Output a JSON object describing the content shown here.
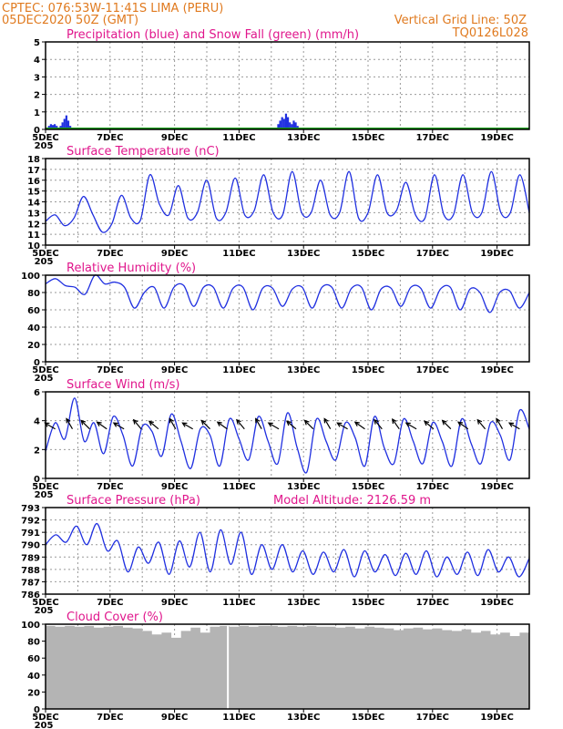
{
  "header": {
    "left_line1": "CPTEC:   076:53W-11:41S   LIMA (PERU)",
    "left_line2": "05DEC2020 50Z (GMT)",
    "right_line1": "Vertical Grid Line: 50Z",
    "right_line2": "TQ0126L028"
  },
  "colors": {
    "header": "#e07a1f",
    "title": "#e0168c",
    "series": "#2030e0",
    "snow": "#18a018",
    "cloud": "#b4b4b4"
  },
  "chart_data": [
    {
      "id": "precip",
      "type": "bar",
      "title": "Precipitation (blue) and Snow Fall (green) (mm/h)",
      "ylim": [
        0,
        5
      ],
      "yticks": [
        "0",
        "1",
        "2",
        "3",
        "4",
        "5"
      ],
      "xticks": [
        "5DEC",
        "7DEC",
        "9DEC",
        "11DEC",
        "13DEC",
        "15DEC",
        "17DEC",
        "19DEC"
      ],
      "x_start_label": "205",
      "grid": true,
      "series": [
        {
          "values": [
            0.2,
            0.3,
            0.25,
            0.3,
            0.2,
            0.1,
            0.2,
            0.4,
            0.6,
            0.8,
            0.5,
            0.2,
            0.1,
            0.1,
            0.05
          ]
        },
        {
          "values": [
            0.1,
            0.3,
            0.5,
            0.7,
            0.6,
            0.9,
            0.7,
            0.4,
            0.3,
            0.5,
            0.4,
            0.2,
            0.1
          ]
        },
        {
          "values": [
            0.02
          ]
        }
      ]
    },
    {
      "id": "temp",
      "type": "line",
      "title": "Surface Temperature (nC)",
      "ylim": [
        10,
        18
      ],
      "yticks": [
        "10",
        "11",
        "12",
        "13",
        "14",
        "15",
        "16",
        "17",
        "18"
      ],
      "xticks": [
        "5DEC",
        "7DEC",
        "9DEC",
        "11DEC",
        "13DEC",
        "15DEC",
        "17DEC",
        "19DEC"
      ],
      "x_start_label": "205",
      "grid": true,
      "values": [
        12.2,
        12.8,
        11.8,
        12.5,
        14.5,
        12.8,
        11.2,
        12.0,
        14.6,
        12.5,
        12.3,
        16.5,
        13.8,
        12.8,
        15.5,
        12.5,
        13.0,
        16.0,
        12.5,
        13.0,
        16.2,
        12.8,
        13.2,
        16.5,
        13.0,
        12.8,
        16.8,
        13.0,
        13.0,
        16.0,
        12.8,
        13.0,
        16.8,
        12.5,
        13.0,
        16.5,
        13.0,
        13.2,
        15.8,
        12.8,
        12.5,
        16.5,
        12.8,
        12.8,
        16.5,
        13.0,
        13.0,
        16.8,
        13.0,
        13.0,
        16.5,
        13.0
      ]
    },
    {
      "id": "rh",
      "type": "line",
      "title": "Relative Humidity (%)",
      "ylim": [
        0,
        100
      ],
      "yticks": [
        "0",
        "20",
        "40",
        "60",
        "80",
        "100"
      ],
      "xticks": [
        "5DEC",
        "7DEC",
        "9DEC",
        "11DEC",
        "13DEC",
        "15DEC",
        "17DEC",
        "19DEC"
      ],
      "x_start_label": "205",
      "grid": true,
      "values": [
        90,
        96,
        88,
        86,
        78,
        100,
        90,
        92,
        86,
        62,
        80,
        86,
        62,
        86,
        88,
        64,
        86,
        86,
        62,
        85,
        86,
        60,
        85,
        85,
        64,
        84,
        86,
        62,
        86,
        86,
        62,
        85,
        86,
        60,
        84,
        85,
        64,
        86,
        85,
        62,
        84,
        86,
        60,
        84,
        80,
        57,
        80,
        82,
        62,
        80
      ]
    },
    {
      "id": "wind",
      "type": "line",
      "title": "Surface Wind (m/s)",
      "ylim": [
        0,
        7
      ],
      "yticks": [
        "0",
        "2",
        "4",
        "6"
      ],
      "xticks": [
        "5DEC",
        "7DEC",
        "9DEC",
        "11DEC",
        "13DEC",
        "15DEC",
        "17DEC",
        "19DEC"
      ],
      "x_start_label": "205",
      "grid": true,
      "values": [
        2.2,
        4.5,
        3.2,
        6.5,
        3.0,
        4.5,
        2.0,
        5.0,
        3.5,
        1.0,
        4.2,
        3.8,
        1.8,
        5.2,
        3.0,
        0.8,
        4.0,
        3.5,
        1.0,
        4.8,
        3.2,
        1.5,
        5.0,
        3.0,
        1.2,
        5.3,
        2.5,
        0.5,
        4.8,
        3.0,
        1.5,
        4.5,
        3.3,
        1.0,
        5.0,
        2.5,
        1.2,
        4.8,
        3.0,
        1.2,
        4.5,
        3.0,
        1.0,
        4.8,
        2.8,
        1.2,
        4.5,
        3.5,
        1.5,
        5.5,
        4.0
      ],
      "arrows_deg": [
        150,
        120,
        135,
        145,
        150,
        130,
        140,
        120,
        150,
        135,
        145,
        130,
        120,
        150,
        140,
        135,
        120,
        150,
        145,
        130,
        125,
        150,
        140,
        135,
        145,
        130,
        120,
        150
      ]
    },
    {
      "id": "pressure",
      "type": "line",
      "title": "Surface Pressure (hPa)",
      "annotation": "Model Altitude: 2126.59 m",
      "ylim": [
        786,
        793
      ],
      "yticks": [
        "786",
        "787",
        "788",
        "789",
        "790",
        "791",
        "792",
        "793"
      ],
      "xticks": [
        "5DEC",
        "7DEC",
        "9DEC",
        "11DEC",
        "13DEC",
        "15DEC",
        "17DEC",
        "19DEC"
      ],
      "x_start_label": "205",
      "grid": true,
      "values": [
        790.0,
        790.8,
        790.2,
        791.5,
        790.0,
        791.7,
        789.5,
        790.3,
        787.8,
        789.8,
        788.5,
        790.2,
        787.6,
        790.3,
        788.2,
        791.0,
        787.8,
        791.2,
        788.4,
        791.0,
        787.6,
        790.0,
        788.0,
        790.0,
        787.8,
        789.5,
        787.6,
        789.4,
        787.8,
        789.6,
        787.4,
        789.5,
        787.8,
        789.2,
        787.5,
        789.3,
        787.6,
        789.5,
        787.4,
        789.0,
        787.6,
        789.4,
        787.5,
        789.6,
        787.8,
        789.0,
        787.4,
        788.9
      ]
    },
    {
      "id": "cloud",
      "type": "area",
      "title": "Cloud Cover (%)",
      "ylim": [
        0,
        100
      ],
      "yticks": [
        "0",
        "20",
        "40",
        "60",
        "80",
        "100"
      ],
      "xticks": [
        "5DEC",
        "7DEC",
        "9DEC",
        "11DEC",
        "13DEC",
        "15DEC",
        "17DEC",
        "19DEC"
      ],
      "x_start_label": "205",
      "grid": true,
      "values": [
        98,
        97,
        98,
        97,
        98,
        96,
        97,
        98,
        96,
        95,
        92,
        88,
        90,
        84,
        92,
        96,
        90,
        97,
        98,
        97,
        98,
        97,
        98,
        98,
        97,
        98,
        97,
        98,
        97,
        97,
        96,
        97,
        95,
        97,
        96,
        95,
        93,
        95,
        96,
        94,
        95,
        93,
        92,
        94,
        90,
        92,
        88,
        90,
        86,
        90
      ],
      "gap": [
        0.375,
        0
      ]
    }
  ]
}
